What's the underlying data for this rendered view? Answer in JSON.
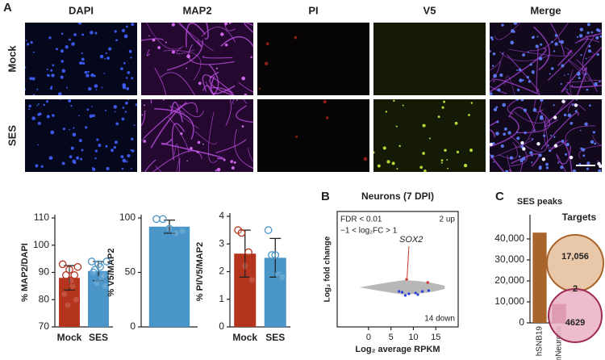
{
  "panel_labels": [
    "A",
    "B",
    "C"
  ],
  "microscopy": {
    "channels": [
      {
        "name": "DAPI",
        "color": "#2f4bff"
      },
      {
        "name": "MAP2",
        "color": "#9b3fd0"
      },
      {
        "name": "PI",
        "color": "#d23c2a"
      },
      {
        "name": "V5",
        "color": "#7fc22a"
      },
      {
        "name": "Merge",
        "color": "#111111"
      }
    ],
    "rows": [
      "Mock",
      "SES"
    ]
  },
  "chart_data": [
    {
      "type": "bar",
      "ylabel": "% MAP2/DAPI",
      "categories": [
        "Mock",
        "SES"
      ],
      "values": [
        88,
        90.5
      ],
      "errors": [
        4.5,
        3.5
      ],
      "colors": [
        "#b5341e",
        "#4a96c8"
      ],
      "points": [
        [
          93,
          89,
          91,
          85,
          80,
          82,
          78,
          87,
          89,
          92
        ],
        [
          94,
          91,
          93,
          88,
          85,
          90,
          86,
          92,
          89,
          94
        ]
      ],
      "ylim": [
        70,
        110
      ],
      "yticks": [
        70,
        80,
        90,
        100,
        110
      ]
    },
    {
      "type": "bar",
      "ylabel": "% V5/MAP2",
      "categories": [
        null
      ],
      "values": [
        92
      ],
      "errors": [
        6
      ],
      "colors": [
        "#4a96c8"
      ],
      "points": [
        [
          99,
          99,
          90,
          86,
          88
        ]
      ],
      "ylim": [
        0,
        100
      ],
      "yticks": [
        0,
        50,
        100
      ]
    },
    {
      "type": "bar",
      "ylabel": "% PI/V5/MAP2",
      "categories": [
        "Mock",
        "SES"
      ],
      "values": [
        2.65,
        2.5
      ],
      "errors": [
        0.85,
        0.7
      ],
      "colors": [
        "#b5341e",
        "#4a96c8"
      ],
      "points": [
        [
          3.5,
          3.4,
          2.2,
          2.7,
          1.7
        ],
        [
          3.5,
          2.6,
          2.6,
          1.9,
          1.8
        ]
      ],
      "ylim": [
        0,
        4
      ],
      "yticks": [
        0,
        1,
        2,
        3,
        4
      ]
    },
    {
      "type": "ma",
      "title": "Neurons (7 DPI)",
      "xlabel": "Log₂ average RPKM",
      "ylabel": "Log₂ fold change",
      "xlim": [
        -7,
        20
      ],
      "xticks": [
        0,
        5,
        10,
        15
      ],
      "annotations": [
        "FDR < 0.01",
        "−1 < log₂FC > 1",
        "2 up",
        "14 down",
        "SOX2"
      ]
    },
    {
      "type": "bar",
      "title": "SES peaks",
      "categories": [
        "hSNB19",
        "mNeurons"
      ],
      "values": [
        43000,
        9000
      ],
      "colors": [
        "#a8642a",
        "#9c2a55"
      ],
      "ylim": [
        0,
        50000
      ],
      "yticks": [
        0,
        {
          "value": 10000,
          "label": "10,000"
        },
        {
          "value": 20000,
          "label": "20,000"
        },
        {
          "value": 30000,
          "label": "30,000"
        },
        {
          "value": 40000,
          "label": "40,000"
        }
      ]
    },
    {
      "type": "venn",
      "title": "Targets",
      "values": [
        17056,
        2,
        4629
      ],
      "value_labels": [
        "17,056",
        "2",
        "4629"
      ],
      "colors": [
        "#a8642a",
        "#9c2a55"
      ]
    }
  ]
}
